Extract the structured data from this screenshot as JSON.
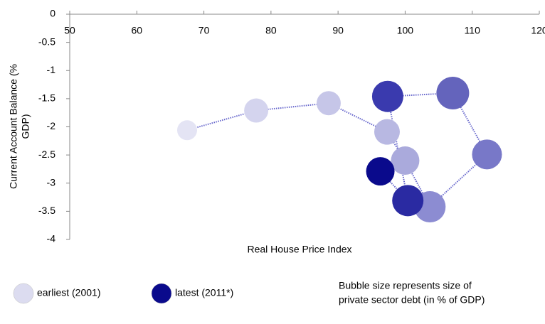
{
  "chart_data": {
    "type": "bubble",
    "x_label": "Real House Price Index",
    "y_label_lines": [
      "Current Account  Balance (%",
      "GDP)"
    ],
    "x": [
      67.5,
      77.8,
      88.6,
      97.3,
      100,
      103.7,
      112.2,
      107.1,
      97.4,
      100.4,
      96.3
    ],
    "values": [
      -2.06,
      -1.71,
      -1.58,
      -2.09,
      -2.6,
      -3.42,
      -2.49,
      -1.4,
      -1.46,
      -3.31,
      -2.79
    ],
    "sizes": [
      100,
      147,
      147,
      165,
      204,
      247,
      225,
      270,
      247,
      247,
      204
    ],
    "colors": [
      "#e4e4f4",
      "#d4d4ee",
      "#c6c6e8",
      "#b8b8e2",
      "#aaaadc",
      "#8c8cd2",
      "#7878c8",
      "#6464bc",
      "#3a3aae",
      "#2a2aa2",
      "#0a0a8c"
    ],
    "line_color": "#6666cc",
    "xlim": [
      50,
      120
    ],
    "xticks": [
      50,
      60,
      70,
      80,
      90,
      100,
      110,
      120
    ],
    "ylim": [
      -4,
      0
    ],
    "yticks": [
      0,
      -0.5,
      -1,
      -1.5,
      -2,
      -2.5,
      -3,
      -3.5,
      -4
    ],
    "legend": [
      {
        "name": "earliest (2001)",
        "color": "#dcdcf0"
      },
      {
        "name": "latest (2011*)",
        "color": "#0a0a8c"
      }
    ],
    "note_lines": [
      "Bubble size represents size of",
      "private sector debt (in % of GDP)"
    ]
  }
}
